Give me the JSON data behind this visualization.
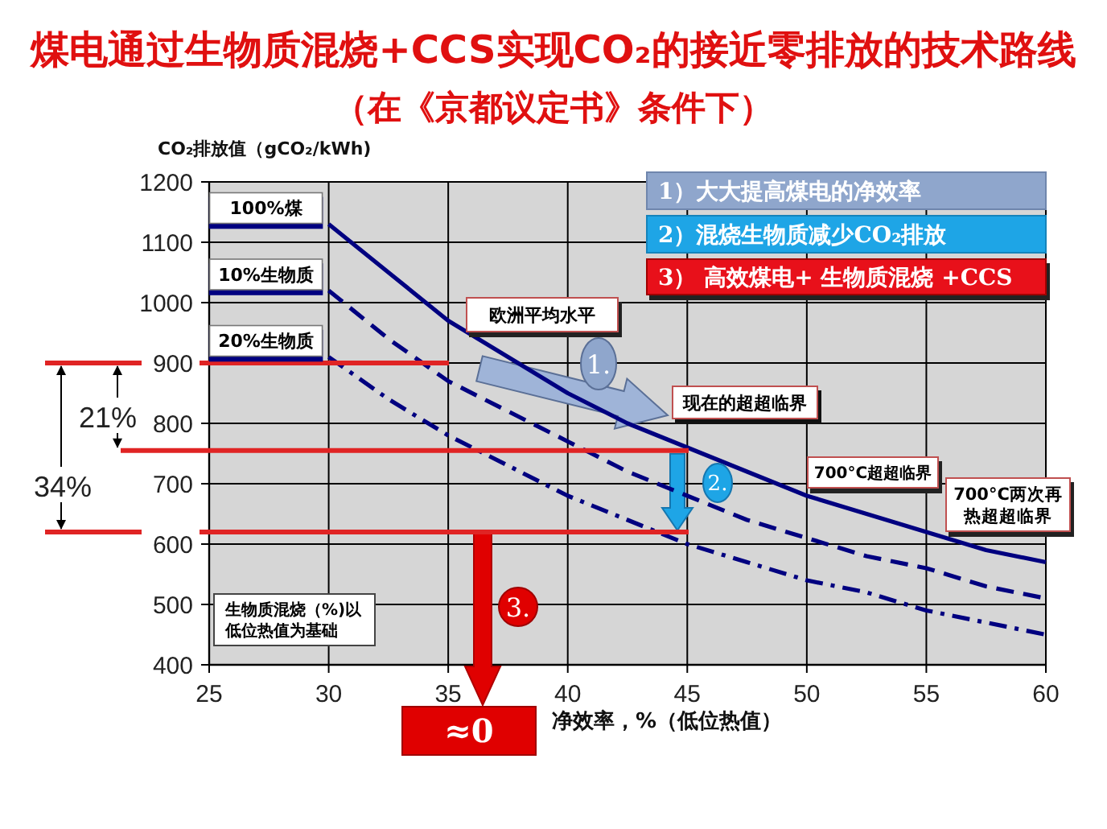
{
  "chart_data": {
    "type": "line",
    "title": "煤电通过生物质混烧+CCS实现CO₂的接近零排放的技术路线",
    "subtitle": "（在《京都议定书》条件下）",
    "xlabel": "净效率，%（低位热值）",
    "ylabel": "CO₂排放值（gCO₂/kWh)",
    "x": [
      30,
      32.5,
      35,
      37.5,
      40,
      42.5,
      45,
      47.5,
      50,
      52.5,
      55,
      57.5,
      60
    ],
    "series": [
      {
        "name": "100%煤",
        "color": "#000080",
        "line_style": "solid",
        "values": [
          1130,
          1050,
          970,
          910,
          850,
          800,
          760,
          720,
          680,
          650,
          620,
          590,
          570
        ]
      },
      {
        "name": "10%生物质",
        "color": "#000080",
        "line_style": "dashed",
        "values": [
          1020,
          940,
          870,
          820,
          770,
          720,
          680,
          640,
          610,
          580,
          560,
          530,
          510
        ]
      },
      {
        "name": "20%生物质",
        "color": "#000080",
        "line_style": "dashdot",
        "values": [
          910,
          840,
          780,
          730,
          680,
          640,
          600,
          570,
          540,
          520,
          490,
          470,
          450
        ]
      }
    ],
    "xlim": [
      25,
      60
    ],
    "ylim": [
      400,
      1200
    ],
    "xticks": [
      25,
      30,
      35,
      40,
      45,
      50,
      55,
      60
    ],
    "yticks": [
      400,
      500,
      600,
      700,
      800,
      900,
      1000,
      1100,
      1200
    ],
    "grid": true,
    "ref_lines": [
      {
        "axis": "y",
        "value": 900,
        "color": "#e02424"
      },
      {
        "axis": "y",
        "value": 755,
        "label": "现在的超超临界",
        "color": "#e02424"
      },
      {
        "axis": "y",
        "value": 620,
        "color": "#e02424"
      }
    ],
    "annotations": [
      "1）大大提高煤电的净效率",
      "2）混烧生物质减少CO₂排放",
      "3） 高效煤电+ 生物质混烧 +CCS",
      "1.",
      "2.",
      "3.",
      "≈0",
      "21%",
      "34%",
      "700°C超超临界",
      "700°C两次再热超超临界",
      "生物质混烧（%)以低位热值为基础",
      "欧洲平均水平"
    ]
  }
}
